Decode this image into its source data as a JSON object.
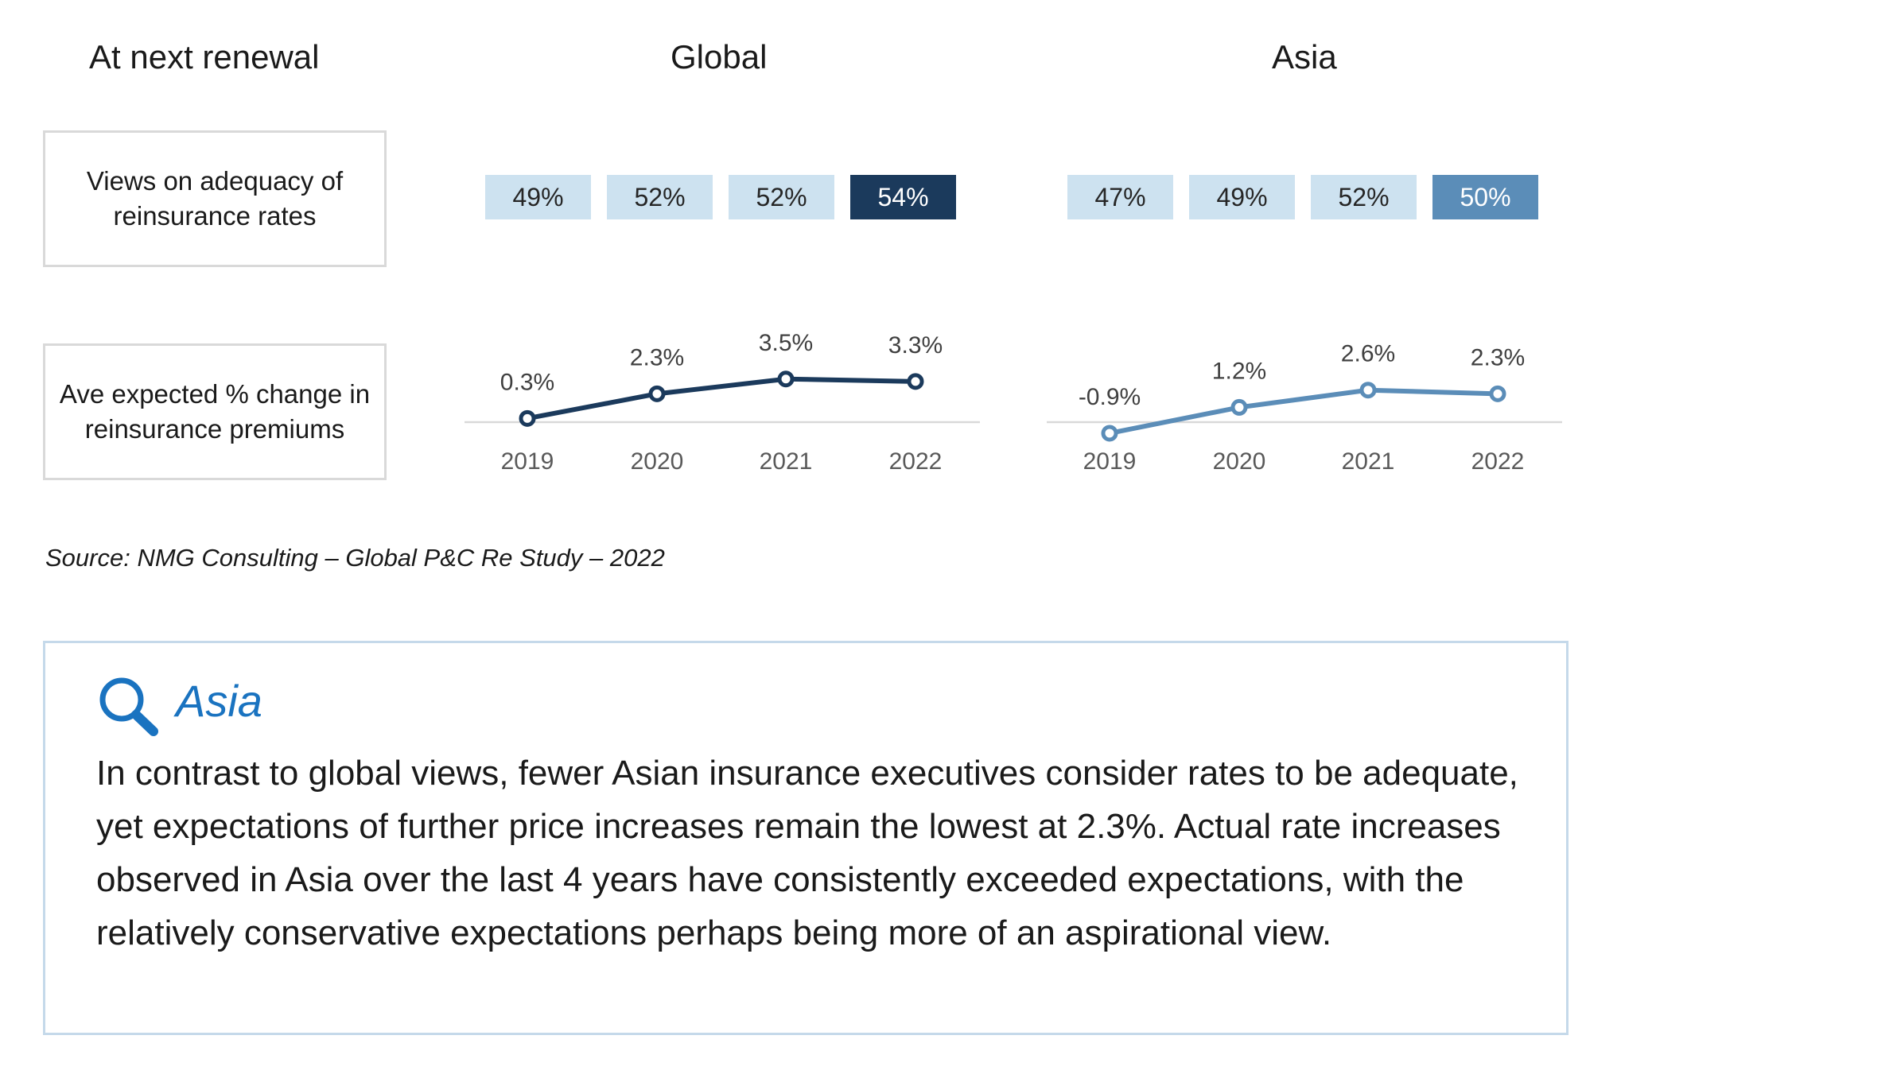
{
  "headings": {
    "left": "At next renewal",
    "global": "Global",
    "asia": "Asia"
  },
  "row_labels": {
    "adequacy": "Views on adequacy of reinsurance rates",
    "premiums": "Ave expected % change in reinsurance premiums"
  },
  "source": "Source: NMG Consulting – Global P&C Re Study – 2022",
  "insight": {
    "title": "Asia",
    "icon": "magnifier-icon",
    "body": "In contrast to global views, fewer Asian insurance executives consider rates to be adequate, yet expectations of further price increases remain the lowest at 2.3%. Actual rate increases observed in Asia over the last 4 years have consistently exceeded expectations, with the relatively conservative expectations perhaps being more of an aspirational view."
  },
  "colors": {
    "tile_light": "#cde2f0",
    "global_highlight": "#1b3a5c",
    "asia_highlight": "#5b8db8",
    "global_line": "#1b3a5c",
    "asia_line": "#5b8db8",
    "axis": "#d9d9d9",
    "accent": "#1a73c0"
  },
  "chart_data": [
    {
      "type": "table",
      "panel": "Global",
      "row": "Views on adequacy of reinsurance rates",
      "categories": [
        "2019",
        "2020",
        "2021",
        "2022"
      ],
      "values": [
        "49%",
        "52%",
        "52%",
        "54%"
      ],
      "highlight_index": 3
    },
    {
      "type": "table",
      "panel": "Asia",
      "row": "Views on adequacy of reinsurance rates",
      "categories": [
        "2019",
        "2020",
        "2021",
        "2022"
      ],
      "values": [
        "47%",
        "49%",
        "52%",
        "50%"
      ],
      "highlight_index": 3
    },
    {
      "type": "line",
      "panel": "Global",
      "row": "Ave expected % change in reinsurance premiums",
      "x": [
        "2019",
        "2020",
        "2021",
        "2022"
      ],
      "y": [
        0.3,
        2.3,
        3.5,
        3.3
      ],
      "labels": [
        "0.3%",
        "2.3%",
        "3.5%",
        "3.3%"
      ],
      "ylim": [
        0,
        4
      ]
    },
    {
      "type": "line",
      "panel": "Asia",
      "row": "Ave expected % change in reinsurance premiums",
      "x": [
        "2019",
        "2020",
        "2021",
        "2022"
      ],
      "y": [
        -0.9,
        1.2,
        2.6,
        2.3
      ],
      "labels": [
        "-0.9%",
        "1.2%",
        "2.6%",
        "2.3%"
      ],
      "ylim": [
        0,
        4
      ]
    }
  ]
}
